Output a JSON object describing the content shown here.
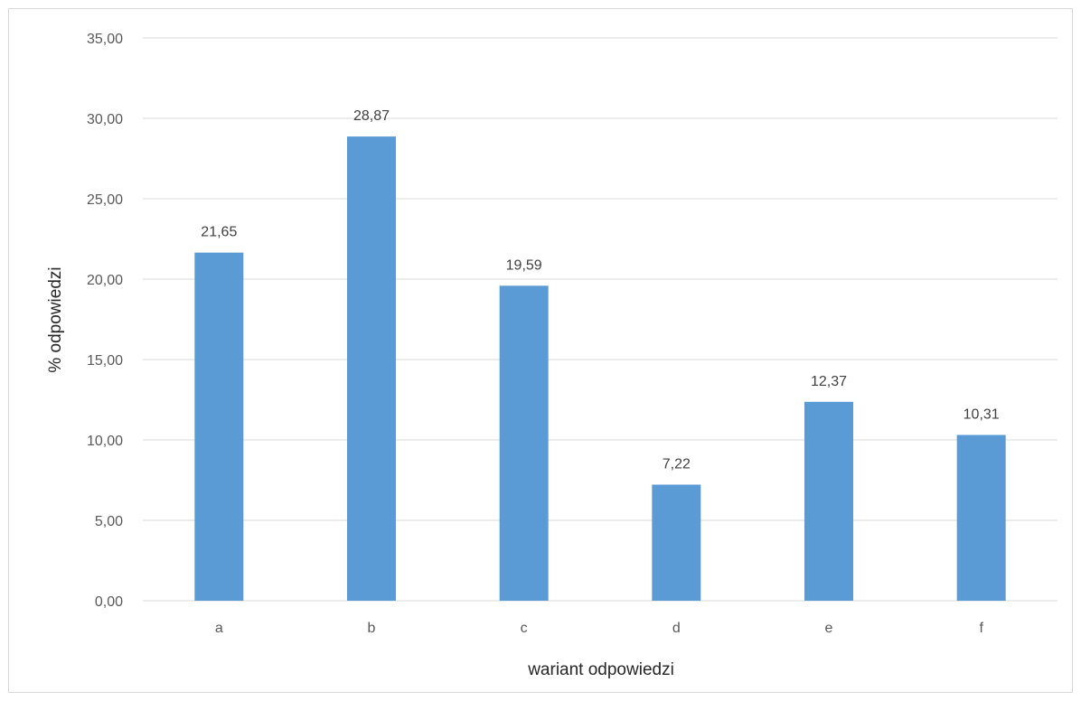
{
  "chart_data": {
    "type": "bar",
    "categories": [
      "a",
      "b",
      "c",
      "d",
      "e",
      "f"
    ],
    "values": [
      21.65,
      28.87,
      19.59,
      7.22,
      12.37,
      10.31
    ],
    "value_labels": [
      "21,65",
      "28,87",
      "19,59",
      "7,22",
      "12,37",
      "10,31"
    ],
    "xlabel": "wariant odpowiedzi",
    "ylabel": "% odpowiedzi",
    "ylim": [
      0,
      35
    ],
    "yticks": [
      0,
      5,
      10,
      15,
      20,
      25,
      30,
      35
    ],
    "ytick_labels": [
      "0,00",
      "5,00",
      "10,00",
      "15,00",
      "20,00",
      "25,00",
      "30,00",
      "35,00"
    ],
    "grid": true,
    "bar_color": "#5b9bd5",
    "gridline_color": "#d9d9d9"
  }
}
